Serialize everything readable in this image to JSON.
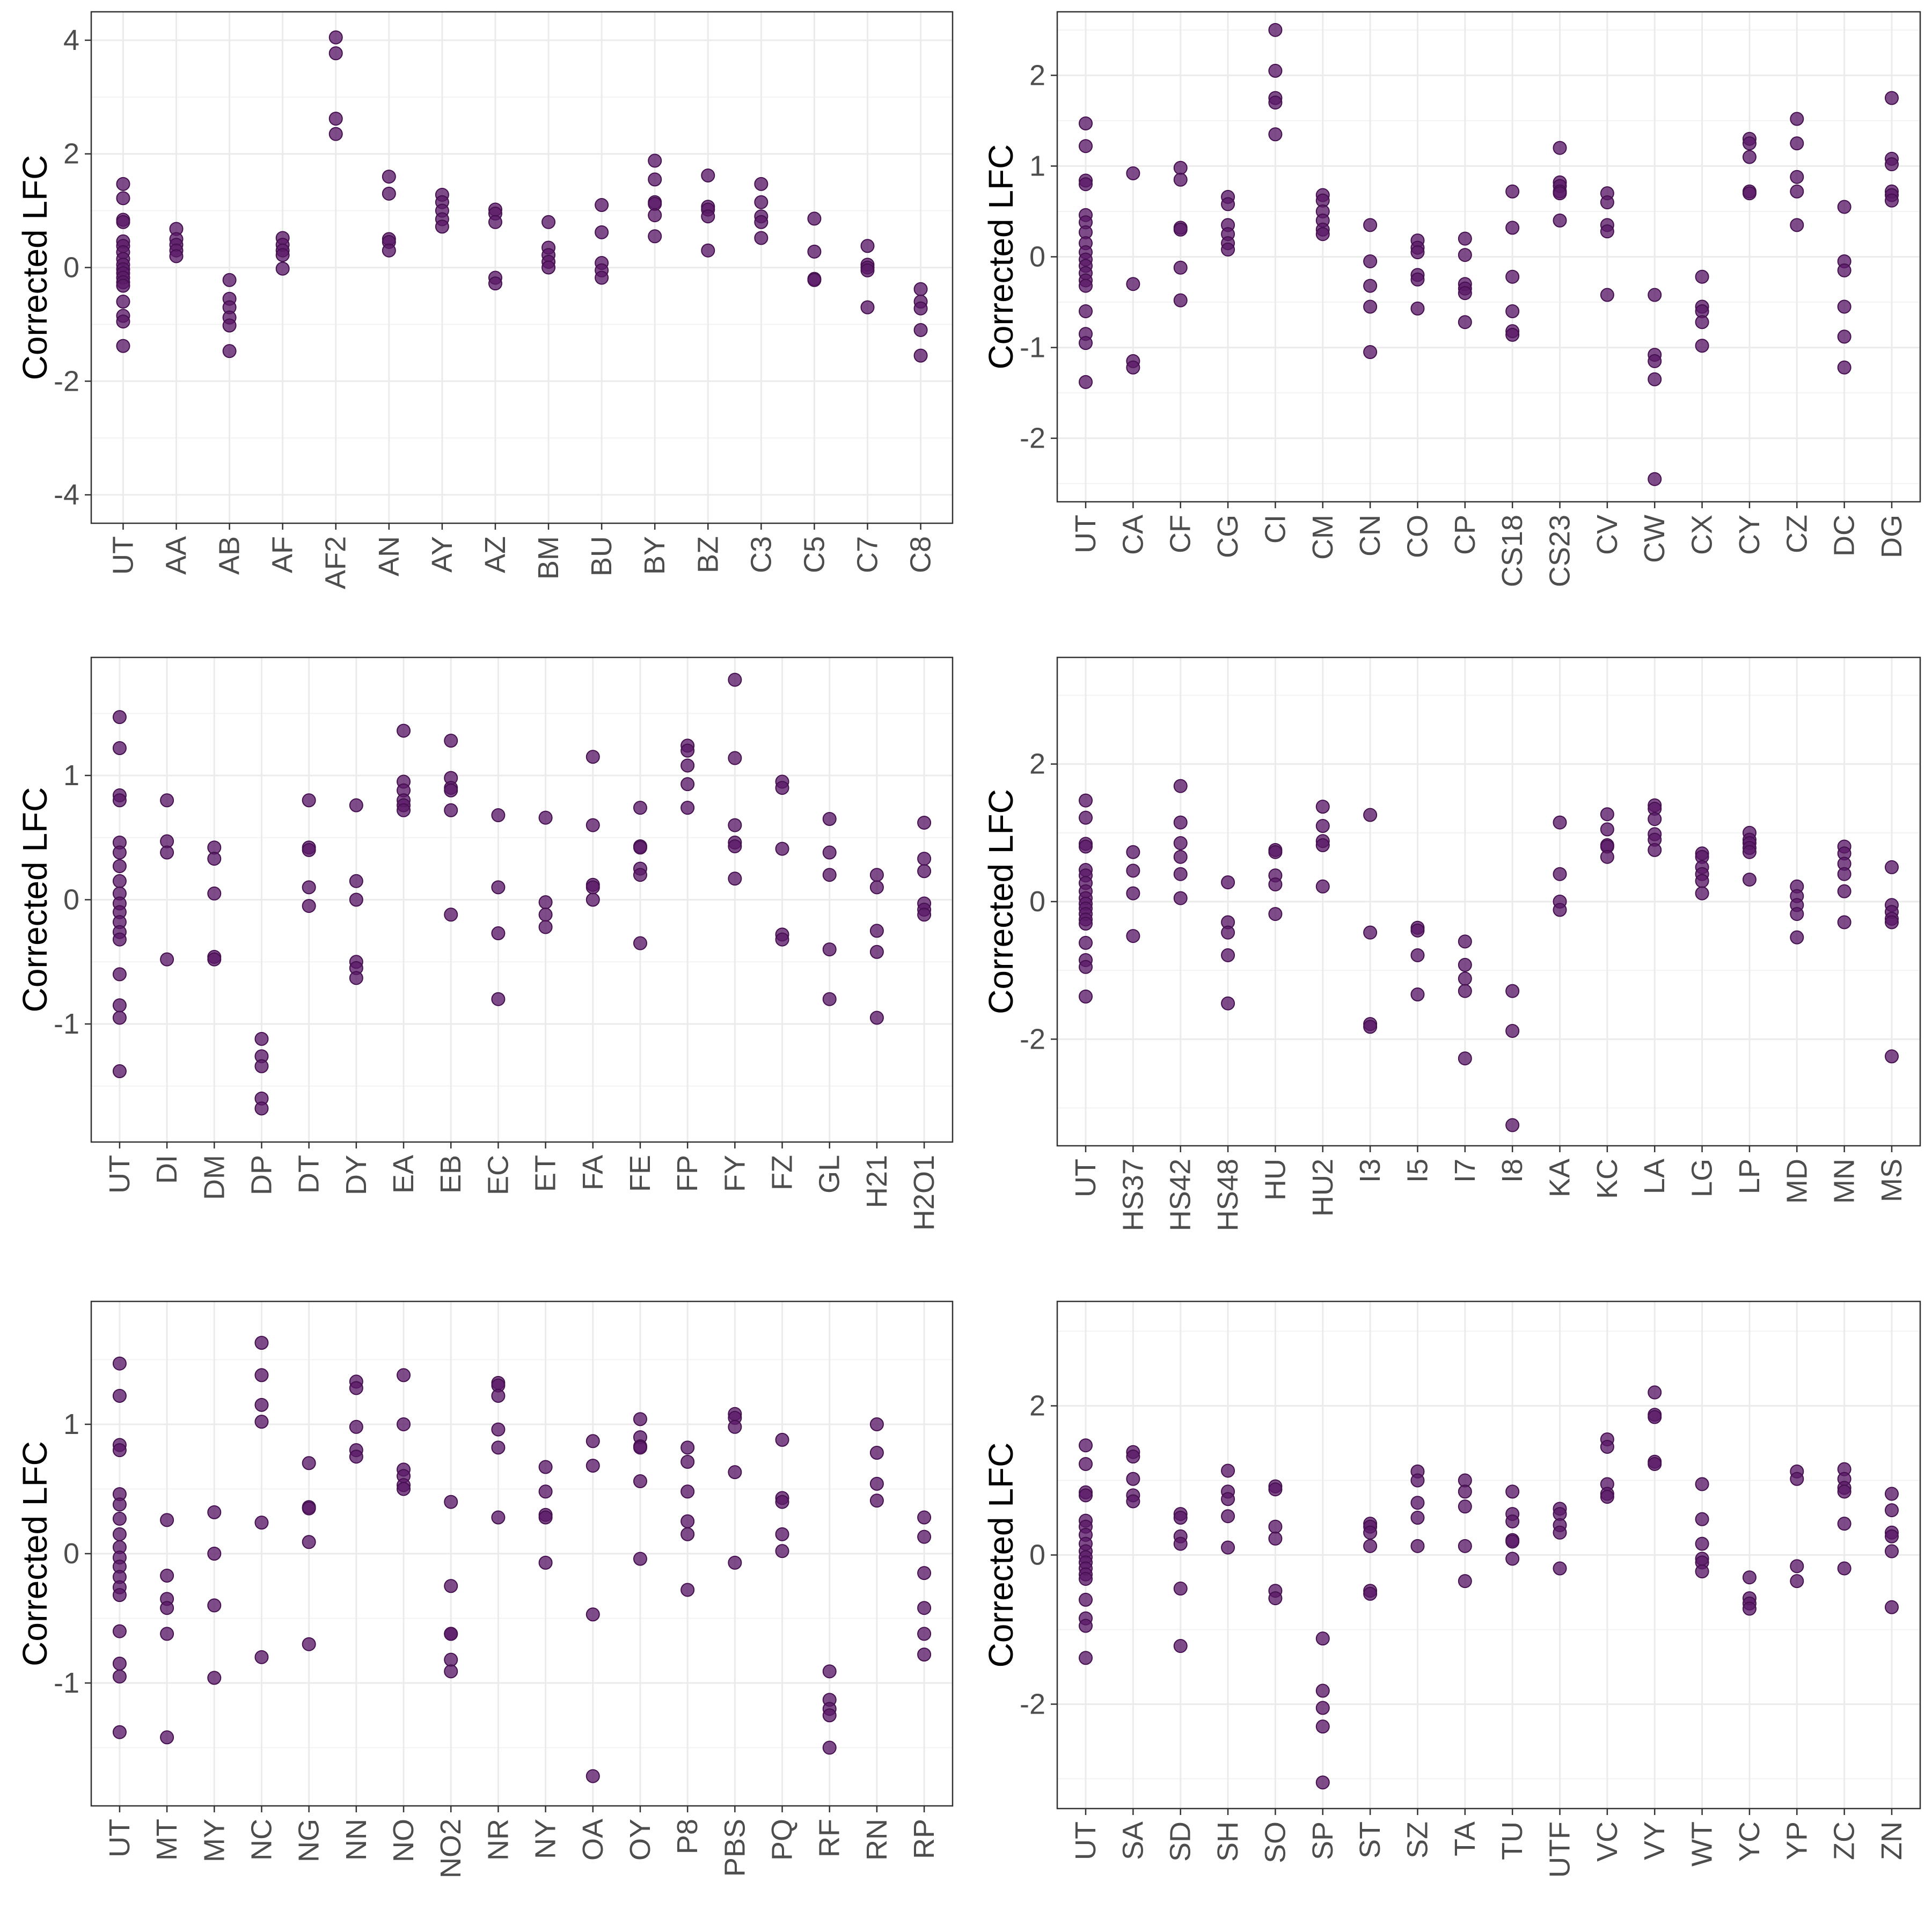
{
  "chart_data": [
    {
      "type": "scatter",
      "ylabel": "Corrected LFC",
      "ylim": [
        -4.5,
        4.5
      ],
      "yticks": [
        -4,
        -2,
        0,
        2,
        4
      ],
      "ytick_labels": [
        "-4",
        "-2",
        "0",
        "2",
        "4"
      ],
      "grid": true,
      "categories": [
        "UT",
        "AA",
        "AB",
        "AF",
        "AF2",
        "AN",
        "AY",
        "AZ",
        "BM",
        "BU",
        "BY",
        "BZ",
        "C3",
        "C5",
        "C7",
        "C8"
      ],
      "values": [
        [
          1.47,
          1.22,
          0.84,
          0.8,
          0.46,
          0.38,
          0.27,
          0.15,
          0.05,
          -0.03,
          -0.1,
          -0.18,
          -0.26,
          -0.32,
          -0.6,
          -0.85,
          -0.95,
          -1.38
        ],
        [
          0.68,
          0.5,
          0.4,
          0.3,
          0.2
        ],
        [
          -0.22,
          -0.55,
          -0.7,
          -0.88,
          -1.02,
          -1.47
        ],
        [
          0.52,
          0.4,
          0.3,
          0.22,
          -0.02
        ],
        [
          4.05,
          3.77,
          2.62,
          2.35
        ],
        [
          1.6,
          1.3,
          0.5,
          0.45,
          0.3
        ],
        [
          1.28,
          1.15,
          1.0,
          0.85,
          0.72
        ],
        [
          1.02,
          0.95,
          0.8,
          -0.18,
          -0.28
        ],
        [
          0.8,
          0.35,
          0.22,
          0.1,
          0.0
        ],
        [
          1.1,
          0.62,
          0.08,
          -0.05,
          -0.18
        ],
        [
          1.88,
          1.55,
          1.15,
          1.12,
          0.92,
          0.55
        ],
        [
          1.62,
          1.07,
          1.02,
          0.9,
          0.3
        ],
        [
          1.47,
          1.15,
          0.9,
          0.8,
          0.52
        ],
        [
          0.86,
          0.28,
          -0.2,
          -0.22
        ],
        [
          0.38,
          0.05,
          0.0,
          -0.05,
          -0.7
        ],
        [
          -0.38,
          -0.6,
          -0.72,
          -1.1,
          -1.55
        ]
      ]
    },
    {
      "type": "scatter",
      "ylabel": "Corrected LFC",
      "ylim": [
        -2.7,
        2.7
      ],
      "yticks": [
        -2,
        -1,
        0,
        1,
        2
      ],
      "ytick_labels": [
        "-2",
        "-1",
        "0",
        "1",
        "2"
      ],
      "grid": true,
      "categories": [
        "UT",
        "CA",
        "CF",
        "CG",
        "CI",
        "CM",
        "CN",
        "CO",
        "CP",
        "CS18",
        "CS23",
        "CV",
        "CW",
        "CX",
        "CY",
        "CZ",
        "DC",
        "DG"
      ],
      "values": [
        [
          1.47,
          1.22,
          0.84,
          0.8,
          0.46,
          0.38,
          0.27,
          0.15,
          0.05,
          -0.03,
          -0.1,
          -0.18,
          -0.26,
          -0.32,
          -0.6,
          -0.85,
          -0.95,
          -1.38
        ],
        [
          0.92,
          -0.3,
          -1.15,
          -1.22
        ],
        [
          0.98,
          0.85,
          0.32,
          0.3,
          -0.12,
          -0.48
        ],
        [
          0.66,
          0.58,
          0.35,
          0.25,
          0.15,
          0.08
        ],
        [
          2.5,
          2.05,
          1.75,
          1.7,
          1.35
        ],
        [
          0.68,
          0.62,
          0.5,
          0.4,
          0.3,
          0.25
        ],
        [
          0.35,
          -0.05,
          -0.32,
          -0.55,
          -1.05
        ],
        [
          0.18,
          0.1,
          0.05,
          -0.2,
          -0.25,
          -0.57
        ],
        [
          0.2,
          0.02,
          -0.3,
          -0.35,
          -0.4,
          -0.72
        ],
        [
          0.72,
          0.32,
          -0.22,
          -0.6,
          -0.82,
          -0.86
        ],
        [
          1.2,
          0.82,
          0.78,
          0.72,
          0.7,
          0.4
        ],
        [
          0.7,
          0.6,
          0.35,
          0.28,
          -0.42
        ],
        [
          -0.42,
          -1.08,
          -1.15,
          -1.35,
          -2.45
        ],
        [
          -0.22,
          -0.55,
          -0.6,
          -0.72,
          -0.98
        ],
        [
          1.3,
          1.25,
          1.1,
          0.72,
          0.7
        ],
        [
          1.52,
          1.25,
          0.88,
          0.72,
          0.35
        ],
        [
          0.55,
          -0.05,
          -0.15,
          -0.55,
          -0.88,
          -1.22
        ],
        [
          1.75,
          1.08,
          1.02,
          0.72,
          0.68,
          0.62
        ]
      ]
    },
    {
      "type": "scatter",
      "ylabel": "Corrected LFC",
      "ylim": [
        -1.95,
        1.95
      ],
      "yticks": [
        -1,
        0,
        1
      ],
      "ytick_labels": [
        "-1",
        "0",
        "1"
      ],
      "grid": true,
      "categories": [
        "UT",
        "DI",
        "DM",
        "DP",
        "DT",
        "DY",
        "EA",
        "EB",
        "EC",
        "ET",
        "FA",
        "FE",
        "FP",
        "FY",
        "FZ",
        "GL",
        "H21",
        "H2O1"
      ],
      "values": [
        [
          1.47,
          1.22,
          0.84,
          0.8,
          0.46,
          0.38,
          0.27,
          0.15,
          0.05,
          -0.03,
          -0.1,
          -0.18,
          -0.26,
          -0.32,
          -0.6,
          -0.85,
          -0.95,
          -1.38
        ],
        [
          0.8,
          0.47,
          0.38,
          -0.48
        ],
        [
          0.42,
          0.33,
          0.05,
          -0.46,
          -0.48
        ],
        [
          -1.12,
          -1.26,
          -1.34,
          -1.6,
          -1.68
        ],
        [
          0.8,
          0.42,
          0.4,
          0.1,
          -0.05
        ],
        [
          0.76,
          0.15,
          0.0,
          -0.5,
          -0.55,
          -0.63
        ],
        [
          1.36,
          0.95,
          0.88,
          0.8,
          0.76,
          0.72
        ],
        [
          1.28,
          0.98,
          0.9,
          0.88,
          0.72,
          -0.12
        ],
        [
          0.68,
          0.1,
          -0.27,
          -0.8
        ],
        [
          0.66,
          -0.02,
          -0.12,
          -0.22
        ],
        [
          1.15,
          0.6,
          0.12,
          0.1,
          0.0
        ],
        [
          0.74,
          0.43,
          0.42,
          0.25,
          0.2,
          -0.35
        ],
        [
          1.24,
          1.2,
          1.08,
          0.93,
          0.74
        ],
        [
          1.77,
          1.14,
          0.6,
          0.46,
          0.43,
          0.17
        ],
        [
          0.95,
          0.9,
          0.41,
          -0.28,
          -0.32
        ],
        [
          0.65,
          0.38,
          0.2,
          -0.4,
          -0.8
        ],
        [
          0.2,
          0.1,
          -0.25,
          -0.42,
          -0.95
        ],
        [
          0.62,
          0.33,
          0.23,
          -0.03,
          -0.08,
          -0.12
        ]
      ]
    },
    {
      "type": "scatter",
      "ylabel": "Corrected LFC",
      "ylim": [
        -3.55,
        3.55
      ],
      "yticks": [
        -2,
        0,
        2
      ],
      "ytick_labels": [
        "-2",
        "0",
        "2"
      ],
      "grid": true,
      "categories": [
        "UT",
        "HS37",
        "HS42",
        "HS48",
        "HU",
        "HU2",
        "I3",
        "I5",
        "I7",
        "I8",
        "KA",
        "KC",
        "LA",
        "LG",
        "LP",
        "MD",
        "MN",
        "MS"
      ],
      "values": [
        [
          1.47,
          1.22,
          0.84,
          0.8,
          0.46,
          0.38,
          0.27,
          0.15,
          0.05,
          -0.03,
          -0.1,
          -0.18,
          -0.26,
          -0.32,
          -0.6,
          -0.85,
          -0.95,
          -1.38
        ],
        [
          0.72,
          0.45,
          0.12,
          -0.5
        ],
        [
          1.68,
          1.15,
          0.85,
          0.65,
          0.4,
          0.05
        ],
        [
          0.28,
          -0.3,
          -0.45,
          -0.78,
          -1.48
        ],
        [
          0.75,
          0.72,
          0.38,
          0.25,
          -0.18
        ],
        [
          1.38,
          1.1,
          0.88,
          0.82,
          0.22
        ],
        [
          1.26,
          -0.45,
          -1.78,
          -1.82
        ],
        [
          -0.38,
          -0.42,
          -0.78,
          -1.35
        ],
        [
          -0.58,
          -0.92,
          -1.12,
          -1.3,
          -2.28
        ],
        [
          -1.3,
          -1.88,
          -3.25
        ],
        [
          1.15,
          0.4,
          0.0,
          -0.12
        ],
        [
          1.27,
          1.05,
          0.82,
          0.8,
          0.65
        ],
        [
          1.4,
          1.35,
          1.2,
          0.98,
          0.9,
          0.75
        ],
        [
          0.7,
          0.65,
          0.5,
          0.4,
          0.3,
          0.12
        ],
        [
          1.0,
          0.9,
          0.85,
          0.78,
          0.72,
          0.32
        ],
        [
          0.22,
          0.08,
          -0.05,
          -0.18,
          -0.52
        ],
        [
          0.8,
          0.7,
          0.55,
          0.4,
          0.15,
          -0.3
        ],
        [
          0.5,
          -0.05,
          -0.15,
          -0.25,
          -0.3,
          -2.25
        ]
      ]
    },
    {
      "type": "scatter",
      "ylabel": "Corrected LFC",
      "ylim": [
        -1.95,
        1.95
      ],
      "yticks": [
        -1,
        0,
        1
      ],
      "ytick_labels": [
        "-1",
        "0",
        "1"
      ],
      "grid": true,
      "categories": [
        "UT",
        "MT",
        "MY",
        "NC",
        "NG",
        "NN",
        "NO",
        "NO2",
        "NR",
        "NY",
        "OA",
        "OY",
        "P8",
        "PBS",
        "PQ",
        "RF",
        "RN",
        "RP"
      ],
      "values": [
        [
          1.47,
          1.22,
          0.84,
          0.8,
          0.46,
          0.38,
          0.27,
          0.15,
          0.05,
          -0.03,
          -0.1,
          -0.18,
          -0.26,
          -0.32,
          -0.6,
          -0.85,
          -0.95,
          -1.38
        ],
        [
          0.26,
          -0.17,
          -0.35,
          -0.42,
          -0.62,
          -1.42
        ],
        [
          0.32,
          0.0,
          -0.4,
          -0.96
        ],
        [
          1.63,
          1.38,
          1.15,
          1.02,
          0.24,
          -0.8
        ],
        [
          0.7,
          0.36,
          0.35,
          0.09,
          -0.7
        ],
        [
          1.33,
          1.28,
          0.98,
          0.8,
          0.75
        ],
        [
          1.38,
          1.0,
          0.65,
          0.6,
          0.53,
          0.5
        ],
        [
          0.4,
          -0.25,
          -0.62,
          -0.62,
          -0.82,
          -0.91
        ],
        [
          1.32,
          1.3,
          1.22,
          0.96,
          0.82,
          0.28
        ],
        [
          0.67,
          0.48,
          0.3,
          0.28,
          -0.07
        ],
        [
          0.87,
          0.68,
          -0.47,
          -1.72
        ],
        [
          1.04,
          0.9,
          0.83,
          0.82,
          0.56,
          -0.04
        ],
        [
          0.82,
          0.71,
          0.48,
          0.25,
          0.15,
          -0.28
        ],
        [
          1.08,
          1.05,
          0.98,
          0.63,
          -0.07
        ],
        [
          0.88,
          0.43,
          0.4,
          0.15,
          0.02
        ],
        [
          -0.91,
          -1.13,
          -1.2,
          -1.25,
          -1.5
        ],
        [
          1.0,
          0.78,
          0.54,
          0.41
        ],
        [
          0.28,
          0.13,
          -0.15,
          -0.42,
          -0.62,
          -0.78
        ]
      ]
    },
    {
      "type": "scatter",
      "ylabel": "Corrected LFC",
      "ylim": [
        -3.4,
        3.4
      ],
      "yticks": [
        -2,
        0,
        2
      ],
      "ytick_labels": [
        "-2",
        "0",
        "2"
      ],
      "grid": true,
      "categories": [
        "UT",
        "SA",
        "SD",
        "SH",
        "SO",
        "SP",
        "ST",
        "SZ",
        "TA",
        "TU",
        "UTF",
        "VC",
        "VY",
        "WT",
        "YC",
        "YP",
        "ZC",
        "ZN"
      ],
      "values": [
        [
          1.47,
          1.22,
          0.84,
          0.8,
          0.46,
          0.38,
          0.27,
          0.15,
          0.05,
          -0.03,
          -0.1,
          -0.18,
          -0.26,
          -0.32,
          -0.6,
          -0.85,
          -0.95,
          -1.38
        ],
        [
          1.38,
          1.32,
          1.02,
          0.8,
          0.72
        ],
        [
          0.55,
          0.5,
          0.25,
          0.15,
          -0.45,
          -1.22
        ],
        [
          1.13,
          0.85,
          0.75,
          0.52,
          0.1
        ],
        [
          0.92,
          0.88,
          0.38,
          0.22,
          -0.48,
          -0.58
        ],
        [
          -1.12,
          -1.82,
          -2.05,
          -2.3,
          -3.05
        ],
        [
          0.42,
          0.38,
          0.3,
          0.12,
          -0.48,
          -0.52
        ],
        [
          1.12,
          1.0,
          0.7,
          0.5,
          0.12
        ],
        [
          1.0,
          0.85,
          0.65,
          0.12,
          -0.35
        ],
        [
          0.85,
          0.55,
          0.45,
          0.2,
          0.18,
          -0.05
        ],
        [
          0.62,
          0.55,
          0.4,
          0.3,
          -0.18
        ],
        [
          1.55,
          1.45,
          0.95,
          0.82,
          0.78
        ],
        [
          2.18,
          1.88,
          1.85,
          1.25,
          1.22
        ],
        [
          0.95,
          0.48,
          0.15,
          -0.05,
          -0.1,
          -0.22
        ],
        [
          -0.3,
          -0.58,
          -0.65,
          -0.72
        ],
        [
          1.12,
          1.02,
          -0.15,
          -0.35
        ],
        [
          1.15,
          1.02,
          0.9,
          0.85,
          0.42,
          -0.18
        ],
        [
          0.82,
          0.6,
          0.3,
          0.25,
          0.05,
          -0.7
        ]
      ]
    }
  ]
}
